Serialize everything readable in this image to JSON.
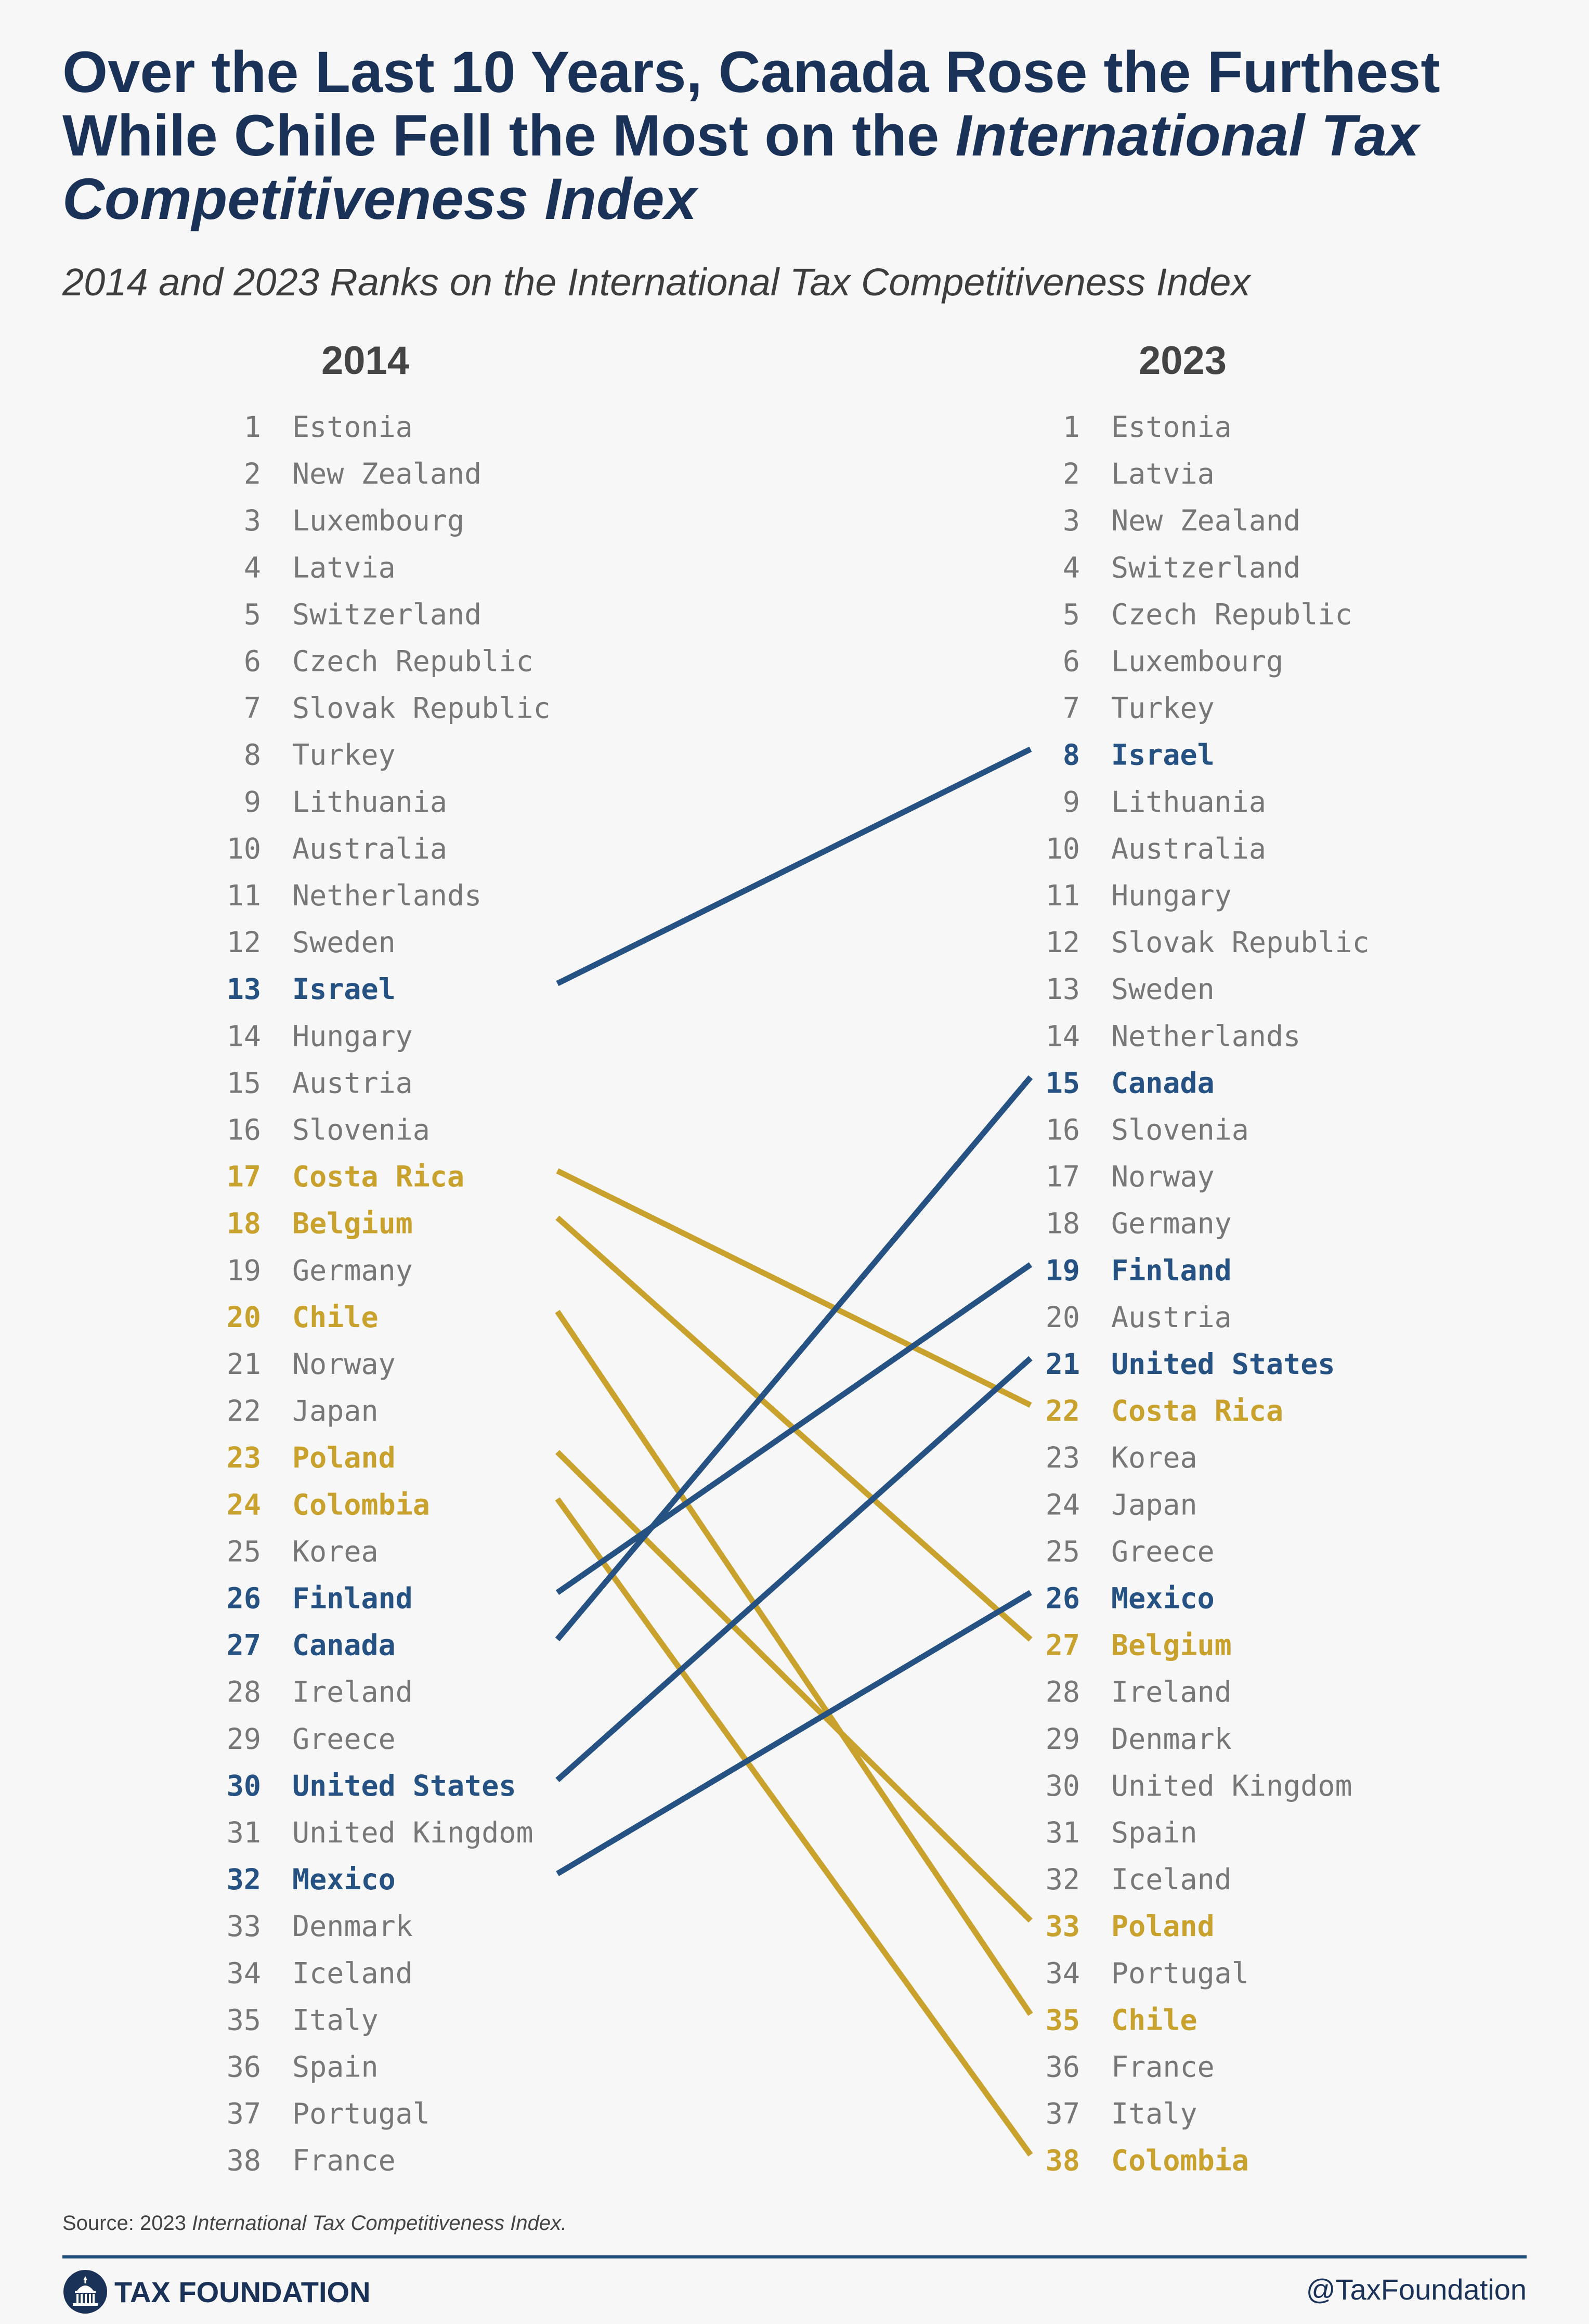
{
  "title": {
    "line1": "Over the Last 10 Years, Canada Rose the Furthest",
    "line2a": "While Chile Fell the Most on the ",
    "line2b": "International Tax",
    "line3": "Competitiveness Index"
  },
  "subtitle": "2014 and 2023 Ranks on the International Tax Competitiveness Index",
  "colors": {
    "up": "#255282",
    "down": "#c9a22e",
    "neutral": "#777777",
    "title": "#1a3258"
  },
  "chart_data": {
    "type": "slope",
    "left_label": "2014",
    "right_label": "2023",
    "left_ranks": [
      "Estonia",
      "New Zealand",
      "Luxembourg",
      "Latvia",
      "Switzerland",
      "Czech Republic",
      "Slovak Republic",
      "Turkey",
      "Lithuania",
      "Australia",
      "Netherlands",
      "Sweden",
      "Israel",
      "Hungary",
      "Austria",
      "Slovenia",
      "Costa Rica",
      "Belgium",
      "Germany",
      "Chile",
      "Norway",
      "Japan",
      "Poland",
      "Colombia",
      "Korea",
      "Finland",
      "Canada",
      "Ireland",
      "Greece",
      "United States",
      "United Kingdom",
      "Mexico",
      "Denmark",
      "Iceland",
      "Italy",
      "Spain",
      "Portugal",
      "France"
    ],
    "right_ranks": [
      "Estonia",
      "Latvia",
      "New Zealand",
      "Switzerland",
      "Czech Republic",
      "Luxembourg",
      "Turkey",
      "Israel",
      "Lithuania",
      "Australia",
      "Hungary",
      "Slovak Republic",
      "Sweden",
      "Netherlands",
      "Canada",
      "Slovenia",
      "Norway",
      "Germany",
      "Finland",
      "Austria",
      "United States",
      "Costa Rica",
      "Korea",
      "Japan",
      "Greece",
      "Mexico",
      "Belgium",
      "Ireland",
      "Denmark",
      "United Kingdom",
      "Spain",
      "Iceland",
      "Poland",
      "Portugal",
      "Chile",
      "France",
      "Italy",
      "Colombia"
    ],
    "risers": [
      {
        "country": "Israel",
        "from": 13,
        "to": 8
      },
      {
        "country": "Canada",
        "from": 27,
        "to": 15
      },
      {
        "country": "Finland",
        "from": 26,
        "to": 19
      },
      {
        "country": "United States",
        "from": 30,
        "to": 21
      },
      {
        "country": "Mexico",
        "from": 32,
        "to": 26
      }
    ],
    "fallers": [
      {
        "country": "Costa Rica",
        "from": 17,
        "to": 22
      },
      {
        "country": "Belgium",
        "from": 18,
        "to": 27
      },
      {
        "country": "Chile",
        "from": 20,
        "to": 35
      },
      {
        "country": "Poland",
        "from": 23,
        "to": 33
      },
      {
        "country": "Colombia",
        "from": 24,
        "to": 38
      }
    ]
  },
  "footer": {
    "source_prefix": "Source: 2023 ",
    "source_italic": "International Tax Competitiveness Index.",
    "brand": "TAX FOUNDATION",
    "handle": "@TaxFoundation"
  }
}
